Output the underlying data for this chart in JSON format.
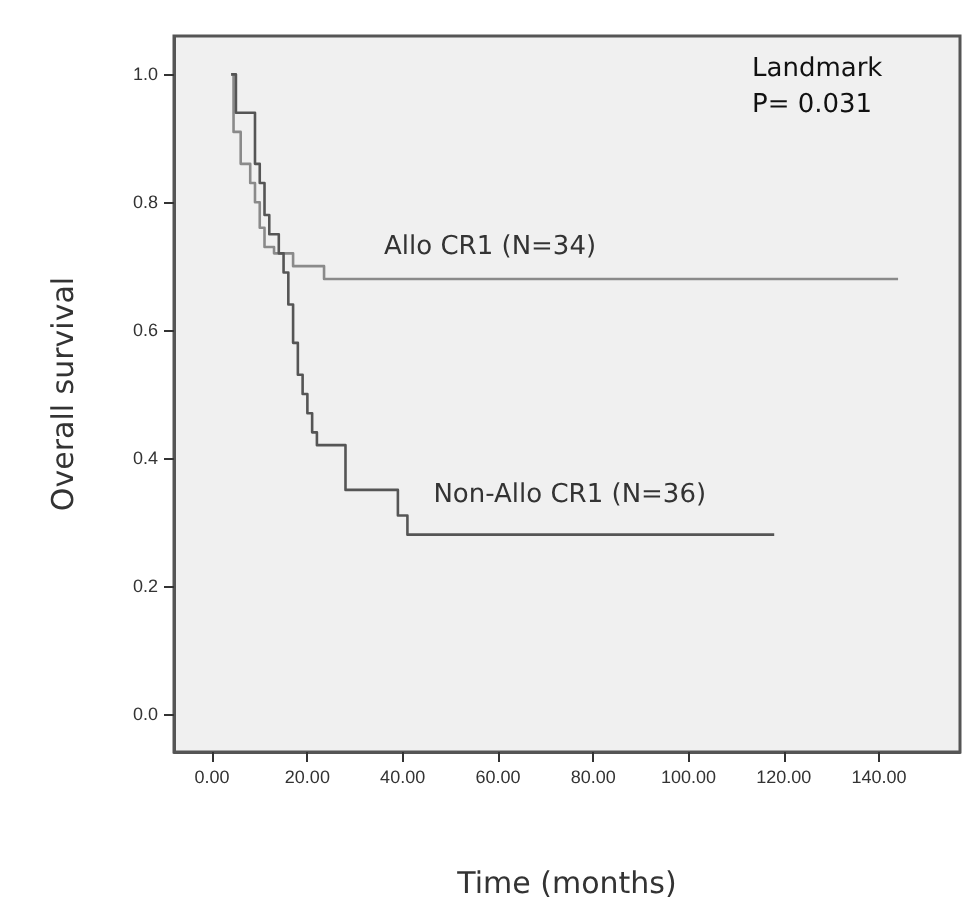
{
  "chart_data": {
    "type": "step",
    "xlabel": "Time (months)",
    "ylabel": "Overall survival",
    "annotations": [
      "Landmark",
      "P= 0.031"
    ],
    "xlim": [
      -8,
      157
    ],
    "ylim": [
      -0.06,
      1.06
    ],
    "xticks": [
      {
        "value": 0,
        "label": "0.00"
      },
      {
        "value": 20,
        "label": "20.00"
      },
      {
        "value": 40,
        "label": "40.00"
      },
      {
        "value": 60,
        "label": "60.00"
      },
      {
        "value": 80,
        "label": "80.00"
      },
      {
        "value": 100,
        "label": "100.00"
      },
      {
        "value": 120,
        "label": "120.00"
      },
      {
        "value": 140,
        "label": "140.00"
      }
    ],
    "yticks": [
      {
        "value": 0,
        "label": "0.0"
      },
      {
        "value": 0.2,
        "label": "0.2"
      },
      {
        "value": 0.4,
        "label": "0.4"
      },
      {
        "value": 0.6,
        "label": "0.6"
      },
      {
        "value": 0.8,
        "label": "0.8"
      },
      {
        "value": 1,
        "label": "1.0"
      }
    ],
    "grid": false,
    "legend": false,
    "marker": "none",
    "line_style": "solid",
    "series": [
      {
        "name": "Allo CR1 (N=34)",
        "color": "#8a8a8a",
        "x": [
          4,
          4.5,
          6,
          8,
          9,
          10,
          11,
          13,
          17,
          23.5,
          144
        ],
        "values": [
          1.0,
          0.91,
          0.86,
          0.83,
          0.8,
          0.76,
          0.73,
          0.72,
          0.7,
          0.68,
          0.68
        ]
      },
      {
        "name": "Non-Allo CR1 (N=36)",
        "color": "#555555",
        "x": [
          4,
          5,
          9,
          10,
          11,
          12,
          14,
          15,
          16,
          17,
          18,
          19,
          20,
          21,
          22,
          28,
          39,
          41,
          118
        ],
        "values": [
          1.0,
          0.94,
          0.86,
          0.83,
          0.78,
          0.75,
          0.72,
          0.69,
          0.64,
          0.58,
          0.53,
          0.5,
          0.47,
          0.44,
          0.42,
          0.35,
          0.31,
          0.28,
          0.28
        ]
      }
    ]
  }
}
